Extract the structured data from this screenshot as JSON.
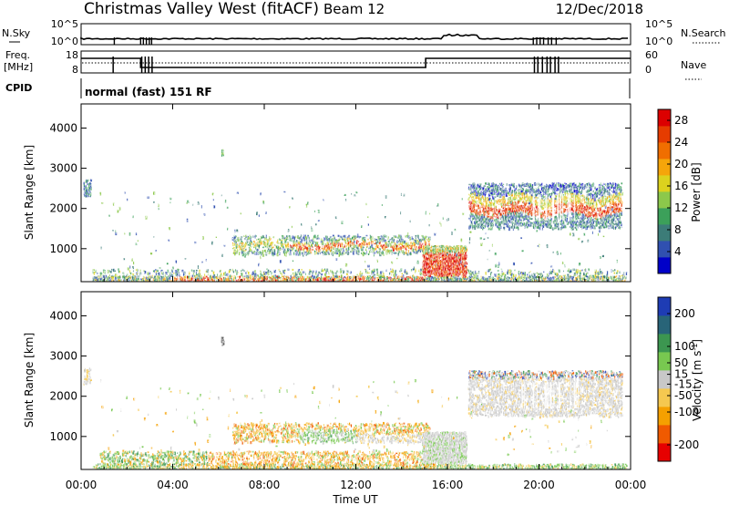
{
  "header": {
    "title": "Christmas Valley West (fitACF)",
    "beam": "Beam 12",
    "date": "12/Dec/2018"
  },
  "noise_panel": {
    "left_label": "N.Sky",
    "right_label": "N.Search",
    "left_ticks": [
      "10^5",
      "10^0"
    ],
    "right_ticks": [
      "10^5",
      "10^0"
    ]
  },
  "freq_panel": {
    "left_label_line1": "Freq.",
    "left_label_line2": "[MHz]",
    "right_label": "Nave",
    "left_ticks": [
      "18",
      "8"
    ],
    "right_ticks": [
      "60",
      "0"
    ]
  },
  "cpid_panel": {
    "label": "CPID",
    "text": "normal (fast) 151 RF"
  },
  "chart_data": [
    {
      "type": "heatmap",
      "name": "power",
      "ylabel": "Slant Range [km]",
      "yticks": [
        "4000",
        "3000",
        "2000",
        "1000"
      ],
      "ylim": [
        180,
        4600
      ],
      "xlim_hours": [
        0,
        24
      ],
      "colorbar": {
        "label": "Power [dB]",
        "ticks": [
          "28",
          "24",
          "20",
          "16",
          "12",
          "8",
          "4"
        ],
        "range": [
          0,
          30
        ],
        "colors": [
          "#0000c8",
          "#3050b0",
          "#3c7c78",
          "#3ca05a",
          "#8cc84b",
          "#dcd21e",
          "#f5a50a",
          "#f06e00",
          "#e63c00",
          "#dc0000"
        ]
      },
      "regions": [
        {
          "label": "near-range ground",
          "t_start": 0.5,
          "t_end": 23.8,
          "r_start": 180,
          "r_end": 450,
          "level": "mixed"
        },
        {
          "label": "afternoon band",
          "t_start": 6.5,
          "t_end": 15.2,
          "r_start": 820,
          "r_end": 1350,
          "level": "medium-high"
        },
        {
          "label": "strong patch",
          "t_start": 14.9,
          "t_end": 16.8,
          "r_start": 350,
          "r_end": 1050,
          "level": "high"
        },
        {
          "label": "evening far band",
          "t_start": 16.9,
          "t_end": 23.6,
          "r_start": 1500,
          "r_end": 2600,
          "level": "high"
        }
      ]
    },
    {
      "type": "heatmap",
      "name": "velocity",
      "ylabel": "Slant Range [km]",
      "yticks": [
        "4000",
        "3000",
        "2000",
        "1000"
      ],
      "ylim": [
        180,
        4600
      ],
      "xlim_hours": [
        0,
        24
      ],
      "xticks": [
        "00:00",
        "04:00",
        "08:00",
        "12:00",
        "16:00",
        "20:00",
        "00:00"
      ],
      "xlabel": "Time UT",
      "colorbar": {
        "label": "Velocity [m s",
        "label_sup": "-1",
        "label_end": "]",
        "ticks": [
          "200",
          "100",
          "50",
          "15",
          "-15",
          "-50",
          "-100",
          "-200"
        ],
        "range": [
          -250,
          250
        ],
        "colors": [
          "#e60000",
          "#f05a00",
          "#f5a000",
          "#f5c850",
          "#c8c8c8",
          "#78c850",
          "#3c9650",
          "#286478",
          "#1e3cb4"
        ]
      }
    }
  ]
}
